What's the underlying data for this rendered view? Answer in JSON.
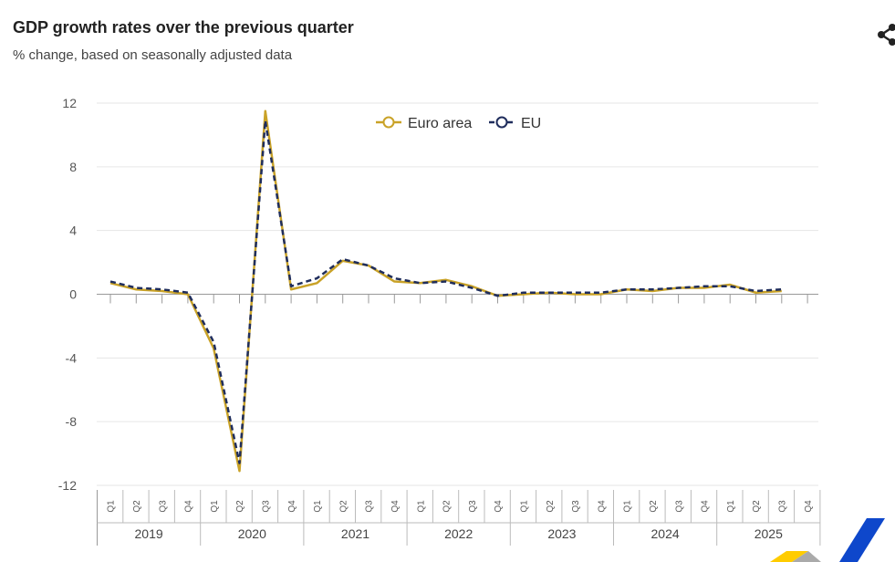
{
  "header": {
    "title": "GDP growth rates over the previous quarter",
    "subtitle": "% change, based on seasonally adjusted data",
    "share_icon": "share-icon"
  },
  "chart_data": {
    "type": "line",
    "title": "GDP growth rates over the previous quarter",
    "subtitle": "% change, based on seasonally adjusted data",
    "legend_position": "top-center",
    "grid": true,
    "ylim": [
      -12,
      12
    ],
    "y_ticks": [
      "12",
      "8",
      "4",
      "0",
      "-4",
      "-8",
      "-12"
    ],
    "years": [
      "2019",
      "2020",
      "2021",
      "2022",
      "2023",
      "2024",
      "2025"
    ],
    "quarters": [
      "Q1",
      "Q2",
      "Q3",
      "Q4"
    ],
    "x": [
      "2019-Q1",
      "2019-Q2",
      "2019-Q3",
      "2019-Q4",
      "2020-Q1",
      "2020-Q2",
      "2020-Q3",
      "2020-Q4",
      "2021-Q1",
      "2021-Q2",
      "2021-Q3",
      "2021-Q4",
      "2022-Q1",
      "2022-Q2",
      "2022-Q3",
      "2022-Q4",
      "2023-Q1",
      "2023-Q2",
      "2023-Q3",
      "2023-Q4",
      "2024-Q1",
      "2024-Q2",
      "2024-Q3",
      "2024-Q4",
      "2025-Q1",
      "2025-Q2",
      "2025-Q3"
    ],
    "series": [
      {
        "name": "Euro area",
        "color": "#c9a227",
        "values": [
          0.7,
          0.3,
          0.2,
          0.0,
          -3.4,
          -11.1,
          11.5,
          0.3,
          0.7,
          2.1,
          1.8,
          0.8,
          0.7,
          0.9,
          0.5,
          -0.1,
          0.0,
          0.1,
          0.0,
          0.0,
          0.3,
          0.2,
          0.4,
          0.4,
          0.6,
          0.1,
          0.2
        ]
      },
      {
        "name": "EU",
        "color": "#1f2d5c",
        "values": [
          0.8,
          0.4,
          0.3,
          0.1,
          -3.0,
          -10.6,
          10.9,
          0.5,
          1.0,
          2.2,
          1.8,
          1.0,
          0.7,
          0.8,
          0.4,
          -0.1,
          0.1,
          0.1,
          0.1,
          0.1,
          0.3,
          0.3,
          0.4,
          0.5,
          0.5,
          0.2,
          0.3
        ]
      }
    ]
  }
}
